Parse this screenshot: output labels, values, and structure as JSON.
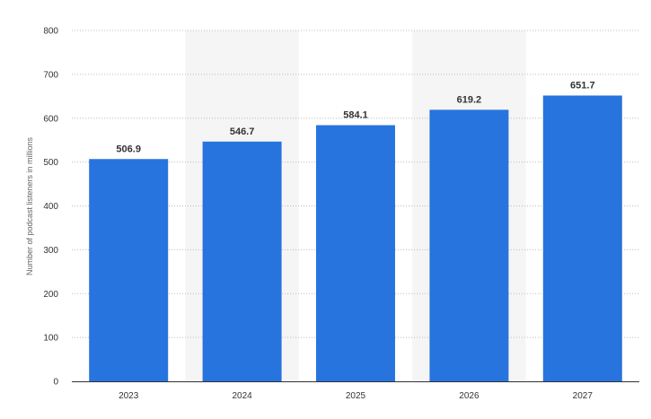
{
  "chart_data": {
    "type": "bar",
    "title": "",
    "xlabel": "",
    "ylabel": "Number of podcast listeners in millions",
    "categories": [
      "2023",
      "2024",
      "2025",
      "2026",
      "2027"
    ],
    "values": [
      506.9,
      546.7,
      584.1,
      619.2,
      651.7
    ],
    "data_labels": [
      "506.9",
      "546.7",
      "584.1",
      "619.2",
      "651.7"
    ],
    "ylim": [
      0,
      800
    ],
    "y_ticks": [
      "0",
      "100",
      "200",
      "300",
      "400",
      "500",
      "600",
      "700",
      "800"
    ],
    "grid": true,
    "grid_style": "dotted",
    "legend": "none",
    "colors": {
      "bar": "#2874de",
      "band": "#f5f5f5",
      "grid": "#bbbbbb",
      "axis": "#333333",
      "text": "#333333"
    }
  }
}
